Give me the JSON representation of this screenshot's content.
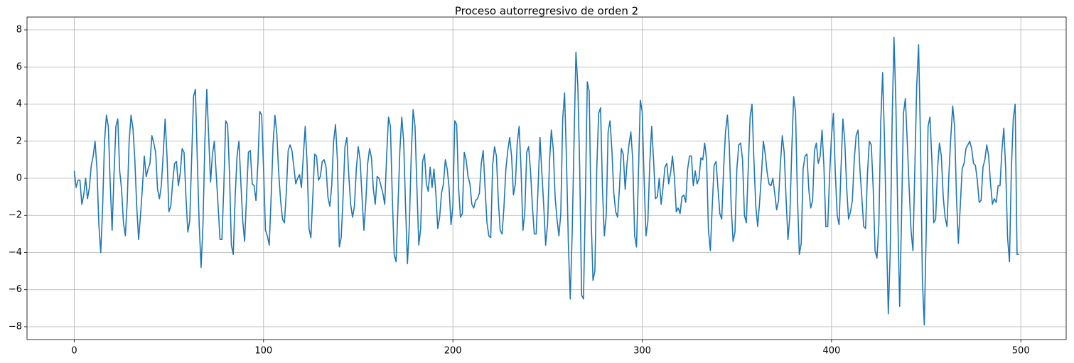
{
  "chart_data": {
    "type": "line",
    "title": "Proceso autorregresivo de orden 2",
    "xlim": [
      -24.95,
      523.95
    ],
    "ylim": [
      -8.69,
      8.69
    ],
    "xticks": [
      0,
      100,
      200,
      300,
      400,
      500
    ],
    "yticks": [
      {
        "value": -8,
        "label": "−8"
      },
      {
        "value": -6,
        "label": "−6"
      },
      {
        "value": -4,
        "label": "−4"
      },
      {
        "value": -2,
        "label": "−2"
      },
      0,
      2,
      4,
      6,
      8
    ],
    "grid": true,
    "series": [
      {
        "color": "#1f77b4",
        "x": [
          0,
          1,
          2,
          3,
          4,
          5,
          6,
          7,
          8,
          9,
          10,
          11,
          12,
          13,
          14,
          15,
          16,
          17,
          18,
          19,
          20,
          21,
          22,
          23,
          24,
          25,
          26,
          27,
          28,
          29,
          30,
          31,
          32,
          33,
          34,
          35,
          36,
          37,
          38,
          39,
          40,
          41,
          42,
          43,
          44,
          45,
          46,
          47,
          48,
          49,
          50,
          51,
          52,
          53,
          54,
          55,
          56,
          57,
          58,
          59,
          60,
          61,
          62,
          63,
          64,
          65,
          66,
          67,
          68,
          69,
          70,
          71,
          72,
          73,
          74,
          75,
          76,
          77,
          78,
          79,
          80,
          81,
          82,
          83,
          84,
          85,
          86,
          87,
          88,
          89,
          90,
          91,
          92,
          93,
          94,
          95,
          96,
          97,
          98,
          99,
          100,
          101,
          102,
          103,
          104,
          105,
          106,
          107,
          108,
          109,
          110,
          111,
          112,
          113,
          114,
          115,
          116,
          117,
          118,
          119,
          120,
          121,
          122,
          123,
          124,
          125,
          126,
          127,
          128,
          129,
          130,
          131,
          132,
          133,
          134,
          135,
          136,
          137,
          138,
          139,
          140,
          141,
          142,
          143,
          144,
          145,
          146,
          147,
          148,
          149,
          150,
          151,
          152,
          153,
          154,
          155,
          156,
          157,
          158,
          159,
          160,
          161,
          162,
          163,
          164,
          165,
          166,
          167,
          168,
          169,
          170,
          171,
          172,
          173,
          174,
          175,
          176,
          177,
          178,
          179,
          180,
          181,
          182,
          183,
          184,
          185,
          186,
          187,
          188,
          189,
          190,
          191,
          192,
          193,
          194,
          195,
          196,
          197,
          198,
          199,
          200,
          201,
          202,
          203,
          204,
          205,
          206,
          207,
          208,
          209,
          210,
          211,
          212,
          213,
          214,
          215,
          216,
          217,
          218,
          219,
          220,
          221,
          222,
          223,
          224,
          225,
          226,
          227,
          228,
          229,
          230,
          231,
          232,
          233,
          234,
          235,
          236,
          237,
          238,
          239,
          240,
          241,
          242,
          243,
          244,
          245,
          246,
          247,
          248,
          249,
          250,
          251,
          252,
          253,
          254,
          255,
          256,
          257,
          258,
          259,
          260,
          261,
          262,
          263,
          264,
          265,
          266,
          267,
          268,
          269,
          270,
          271,
          272,
          273,
          274,
          275,
          276,
          277,
          278,
          279,
          280,
          281,
          282,
          283,
          284,
          285,
          286,
          287,
          288,
          289,
          290,
          291,
          292,
          293,
          294,
          295,
          296,
          297,
          298,
          299,
          300,
          301,
          302,
          303,
          304,
          305,
          306,
          307,
          308,
          309,
          310,
          311,
          312,
          313,
          314,
          315,
          316,
          317,
          318,
          319,
          320,
          321,
          322,
          323,
          324,
          325,
          326,
          327,
          328,
          329,
          330,
          331,
          332,
          333,
          334,
          335,
          336,
          337,
          338,
          339,
          340,
          341,
          342,
          343,
          344,
          345,
          346,
          347,
          348,
          349,
          350,
          351,
          352,
          353,
          354,
          355,
          356,
          357,
          358,
          359,
          360,
          361,
          362,
          363,
          364,
          365,
          366,
          367,
          368,
          369,
          370,
          371,
          372,
          373,
          374,
          375,
          376,
          377,
          378,
          379,
          380,
          381,
          382,
          383,
          384,
          385,
          386,
          387,
          388,
          389,
          390,
          391,
          392,
          393,
          394,
          395,
          396,
          397,
          398,
          399,
          400,
          401,
          402,
          403,
          404,
          405,
          406,
          407,
          408,
          409,
          410,
          411,
          412,
          413,
          414,
          415,
          416,
          417,
          418,
          419,
          420,
          421,
          422,
          423,
          424,
          425,
          426,
          427,
          428,
          429,
          430,
          431,
          432,
          433,
          434,
          435,
          436,
          437,
          438,
          439,
          440,
          441,
          442,
          443,
          444,
          445,
          446,
          447,
          448,
          449,
          450,
          451,
          452,
          453,
          454,
          455,
          456,
          457,
          458,
          459,
          460,
          461,
          462,
          463,
          464,
          465,
          466,
          467,
          468,
          469,
          470,
          471,
          472,
          473,
          474,
          475,
          476,
          477,
          478,
          479,
          480,
          481,
          482,
          483,
          484,
          485,
          486,
          487,
          488,
          489,
          490,
          491,
          492,
          493,
          494,
          495,
          496,
          497,
          498,
          499
        ],
        "values": [
          0.4,
          -0.5,
          -0.1,
          -0.1,
          -1.4,
          -0.9,
          0.0,
          -1.1,
          -0.5,
          0.7,
          1.2,
          2.0,
          0.5,
          -2.5,
          -4.0,
          -1.5,
          2.0,
          3.4,
          2.8,
          -0.3,
          -2.8,
          0.2,
          2.8,
          3.2,
          0.4,
          -0.6,
          -2.4,
          -3.1,
          -1.2,
          2.0,
          3.4,
          2.7,
          1.0,
          -1.5,
          -3.3,
          -2.0,
          -0.5,
          1.2,
          0.1,
          0.5,
          0.8,
          2.3,
          1.9,
          1.4,
          -0.6,
          -1.1,
          -0.4,
          1.3,
          3.2,
          1.2,
          -1.8,
          -1.5,
          -0.2,
          0.8,
          0.9,
          -0.4,
          0.3,
          1.6,
          1.4,
          -1.0,
          -2.9,
          -2.3,
          1.0,
          4.4,
          4.8,
          1.0,
          -2.5,
          -4.8,
          -2.5,
          2.0,
          4.8,
          2.3,
          -0.2,
          1.3,
          2.0,
          0.2,
          -1.5,
          -3.3,
          -3.3,
          -0.5,
          3.1,
          2.9,
          0.3,
          -3.6,
          -4.1,
          -1.0,
          1.2,
          2.0,
          -0.2,
          -2.3,
          -3.4,
          -1.0,
          1.4,
          1.5,
          -0.3,
          -0.4,
          -1.2,
          0.8,
          3.6,
          3.4,
          0.5,
          -2.8,
          -3.1,
          -3.6,
          -1.0,
          1.8,
          3.4,
          2.4,
          0.3,
          -1.2,
          -2.2,
          -2.4,
          -0.8,
          1.5,
          1.8,
          1.5,
          0.6,
          -0.3,
          0.0,
          0.2,
          -0.5,
          1.2,
          2.8,
          0.8,
          -2.7,
          -3.2,
          -1.0,
          1.3,
          1.2,
          -0.1,
          0.1,
          0.9,
          1.0,
          0.6,
          -1.0,
          -1.5,
          -0.4,
          2.0,
          2.9,
          1.0,
          -3.7,
          -3.2,
          -1.0,
          1.7,
          2.2,
          0.2,
          -1.4,
          -2.1,
          -1.5,
          0.5,
          1.7,
          1.0,
          -1.0,
          -2.8,
          -1.3,
          0.8,
          1.6,
          1.1,
          -0.6,
          -1.4,
          0.1,
          0.0,
          -0.4,
          -0.8,
          -1.4,
          1.2,
          3.3,
          2.8,
          -1.0,
          -4.1,
          -4.5,
          -1.5,
          1.5,
          3.3,
          2.0,
          -1.5,
          -4.6,
          -2.5,
          1.2,
          3.7,
          2.8,
          -0.5,
          -3.6,
          -2.7,
          0.9,
          1.3,
          -0.3,
          -0.7,
          0.6,
          -0.5,
          0.5,
          -0.8,
          -2.7,
          -2.1,
          -0.8,
          -0.3,
          1.0,
          0.5,
          -0.5,
          -2.5,
          -1.5,
          3.1,
          2.9,
          -0.5,
          -2.1,
          -1.9,
          1.4,
          1.0,
          0.1,
          -0.3,
          -1.4,
          -1.6,
          -1.2,
          -1.1,
          -0.8,
          0.8,
          1.5,
          -0.5,
          -2.4,
          -3.1,
          -3.2,
          0.7,
          1.7,
          1.2,
          -1.2,
          -2.8,
          -3.0,
          -1.5,
          0.5,
          1.5,
          2.2,
          1.2,
          -0.9,
          -0.3,
          1.9,
          2.8,
          0.5,
          -2.8,
          -1.8,
          1.4,
          1.7,
          0.4,
          -1.5,
          -3.0,
          -3.0,
          -0.5,
          2.2,
          0.3,
          -1.5,
          -3.6,
          -2.5,
          0.8,
          2.6,
          1.6,
          -1.0,
          -2.2,
          -3.1,
          -1.9,
          3.2,
          4.6,
          1.0,
          -3.5,
          -6.5,
          -3.0,
          2.0,
          6.8,
          5.0,
          0.5,
          -6.3,
          -6.5,
          -1.0,
          5.2,
          4.7,
          -2.0,
          -5.5,
          -5.0,
          0.5,
          3.5,
          3.8,
          -0.5,
          -3.1,
          -2.0,
          2.5,
          3.1,
          1.5,
          -0.8,
          -1.8,
          -2.1,
          -0.5,
          1.6,
          1.3,
          -0.6,
          0.8,
          1.8,
          2.5,
          1.0,
          -3.1,
          -3.7,
          0.2,
          4.2,
          3.6,
          0.0,
          -3.1,
          -2.3,
          0.8,
          2.8,
          1.0,
          -1.1,
          -1.0,
          0.0,
          -1.4,
          -0.5,
          0.6,
          0.8,
          -0.3,
          0.3,
          1.2,
          0.1,
          -1.8,
          -1.6,
          -1.9,
          -1.0,
          -0.9,
          -1.3,
          0.5,
          1.2,
          1.2,
          -0.4,
          0.4,
          -0.3,
          0.0,
          1.1,
          1.0,
          1.9,
          1.0,
          -2.8,
          -3.9,
          -1.5,
          0.7,
          0.9,
          -0.5,
          -1.9,
          -2.2,
          0.5,
          2.5,
          3.4,
          1.8,
          -1.5,
          -3.4,
          -2.9,
          0.5,
          1.8,
          1.9,
          1.0,
          -2.0,
          -2.4,
          0.5,
          3.3,
          4.0,
          1.0,
          -1.5,
          -2.6,
          -1.3,
          0.2,
          2.0,
          1.3,
          0.3,
          -0.3,
          -0.4,
          0.0,
          -0.8,
          -1.7,
          -1.2,
          0.8,
          2.3,
          1.4,
          -1.1,
          -3.3,
          -2.0,
          1.5,
          4.4,
          3.6,
          -1.0,
          -4.1,
          -3.5,
          0.5,
          1.2,
          1.3,
          -0.6,
          -1.6,
          -1.2,
          1.5,
          1.9,
          0.8,
          1.2,
          2.6,
          0.6,
          -2.6,
          -2.6,
          0.2,
          2.3,
          3.5,
          0.3,
          -2.0,
          -2.5,
          0.5,
          3.2,
          2.0,
          -0.5,
          -2.2,
          -1.8,
          -1.2,
          1.0,
          2.3,
          2.6,
          0.5,
          -1.0,
          -2.6,
          -2.7,
          0.3,
          2.0,
          1.8,
          -0.5,
          -3.9,
          -4.3,
          -2.5,
          3.0,
          5.7,
          2.0,
          -3.0,
          -7.3,
          -4.0,
          3.0,
          7.6,
          4.0,
          -2.0,
          -6.9,
          -2.0,
          3.5,
          4.3,
          2.0,
          -0.5,
          -2.8,
          -3.9,
          0.5,
          5.0,
          7.2,
          2.0,
          -5.5,
          -7.9,
          -3.0,
          2.8,
          3.3,
          1.0,
          -2.4,
          -2.2,
          0.5,
          1.9,
          1.2,
          -1.0,
          -2.1,
          -2.6,
          0.2,
          2.2,
          3.9,
          2.8,
          -1.0,
          -3.5,
          -1.5,
          0.5,
          0.8,
          1.6,
          1.8,
          2.0,
          1.6,
          0.8,
          0.7,
          -0.1,
          -1.3,
          -1.2,
          0.6,
          1.0,
          1.8,
          1.2,
          -0.3,
          -1.4,
          -1.1,
          -1.3,
          -0.4,
          -0.4,
          1.5,
          2.7,
          0.5,
          -3.2,
          -4.5,
          0.5,
          3.2,
          4.0,
          -4.1,
          -4.1
        ]
      }
    ]
  }
}
